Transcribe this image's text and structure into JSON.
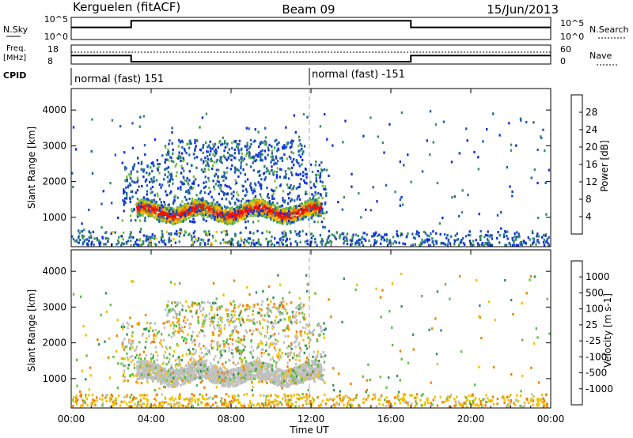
{
  "header": {
    "station": "Kerguelen (fitACF)",
    "beam": "Beam 09",
    "date": "15/Jun/2013"
  },
  "summary": {
    "nsky": {
      "label": "N.Sky",
      "ticks": [
        "10^5",
        "10^0"
      ],
      "right_label": "N.Search",
      "right_ticks": [
        "10^5",
        "10^0"
      ],
      "levels": [
        {
          "from": "00:00",
          "to": "03:00",
          "level": 0.55
        },
        {
          "from": "03:00",
          "to": "17:00",
          "level": 0.85
        },
        {
          "from": "17:00",
          "to": "24:00",
          "level": 0.55
        }
      ]
    },
    "freq": {
      "label": "Freq.",
      "unit": "[MHz]",
      "ticks": [
        "18",
        "8"
      ],
      "right_label": "Nave",
      "right_ticks": [
        "60",
        "0"
      ],
      "levels": [
        {
          "from": "00:00",
          "to": "03:00",
          "level": 0.45
        },
        {
          "from": "03:00",
          "to": "17:00",
          "level": 0.12
        },
        {
          "from": "17:00",
          "to": "24:00",
          "level": 0.45
        }
      ]
    },
    "cpid": {
      "label": "CPID",
      "segments": [
        {
          "start": "00:00",
          "text": "normal (fast) 151"
        },
        {
          "start": "12:00",
          "text": "normal (fast) -151"
        }
      ]
    }
  },
  "chart_data": [
    {
      "type": "heatmap",
      "name": "power",
      "ylabel": "Slant Range [km]",
      "xlabel": "",
      "yticks": [
        "1000",
        "2000",
        "3000",
        "4000"
      ],
      "ylim": [
        180,
        4600
      ],
      "colorbar": {
        "label": "Power [dB]",
        "ticks": [
          "4",
          "8",
          "12",
          "16",
          "20",
          "24",
          "28"
        ],
        "colors": [
          "#1030e0",
          "#2060b0",
          "#3a9060",
          "#7ac040",
          "#f0c000",
          "#f07000",
          "#e02000",
          "#ff0000"
        ]
      },
      "features": [
        {
          "t_start": "03:15",
          "t_end": "12:30",
          "range_km": [
            1000,
            1500
          ],
          "power_db": [
            18,
            30
          ]
        },
        {
          "t_start": "02:30",
          "t_end": "12:45",
          "range_km": [
            900,
            2600
          ],
          "power_db": [
            4,
            14
          ]
        },
        {
          "t_start": "04:40",
          "t_end": "11:40",
          "range_km": [
            2600,
            3200
          ],
          "power_db": [
            4,
            16
          ]
        },
        {
          "t_start": "00:00",
          "t_end": "24:00",
          "range_km": [
            200,
            650
          ],
          "power_db": [
            4,
            12
          ]
        }
      ]
    },
    {
      "type": "heatmap",
      "name": "velocity",
      "ylabel": "Slant Range [km]",
      "xlabel": "Time UT",
      "xticks": [
        "00:00",
        "04:00",
        "08:00",
        "12:00",
        "16:00",
        "20:00",
        "00:00"
      ],
      "yticks": [
        "1000",
        "2000",
        "3000",
        "4000"
      ],
      "ylim": [
        180,
        4600
      ],
      "colorbar": {
        "label": "Velocity [m s-1]",
        "ticks": [
          "1000",
          "500",
          "100",
          "25",
          "-25",
          "-100",
          "-500",
          "-1000"
        ],
        "colors": [
          "#1030c0",
          "#3060c0",
          "#3a9060",
          "#60c040",
          "#c0c0c0",
          "#f0c000",
          "#f08000",
          "#e04000",
          "#ff0000"
        ]
      },
      "features": [
        {
          "t_start": "03:15",
          "t_end": "12:30",
          "range_km": [
            950,
            1500
          ],
          "velocity_ms": [
            -25,
            25
          ]
        },
        {
          "t_start": "02:30",
          "t_end": "12:45",
          "range_km": [
            900,
            2600
          ],
          "velocity_ms": [
            -500,
            500
          ]
        },
        {
          "t_start": "04:40",
          "t_end": "11:40",
          "range_km": [
            2600,
            3200
          ],
          "velocity_ms": [
            -500,
            100
          ]
        },
        {
          "t_start": "00:00",
          "t_end": "24:00",
          "range_km": [
            200,
            600
          ],
          "velocity_ms": [
            -500,
            100
          ]
        }
      ]
    }
  ]
}
